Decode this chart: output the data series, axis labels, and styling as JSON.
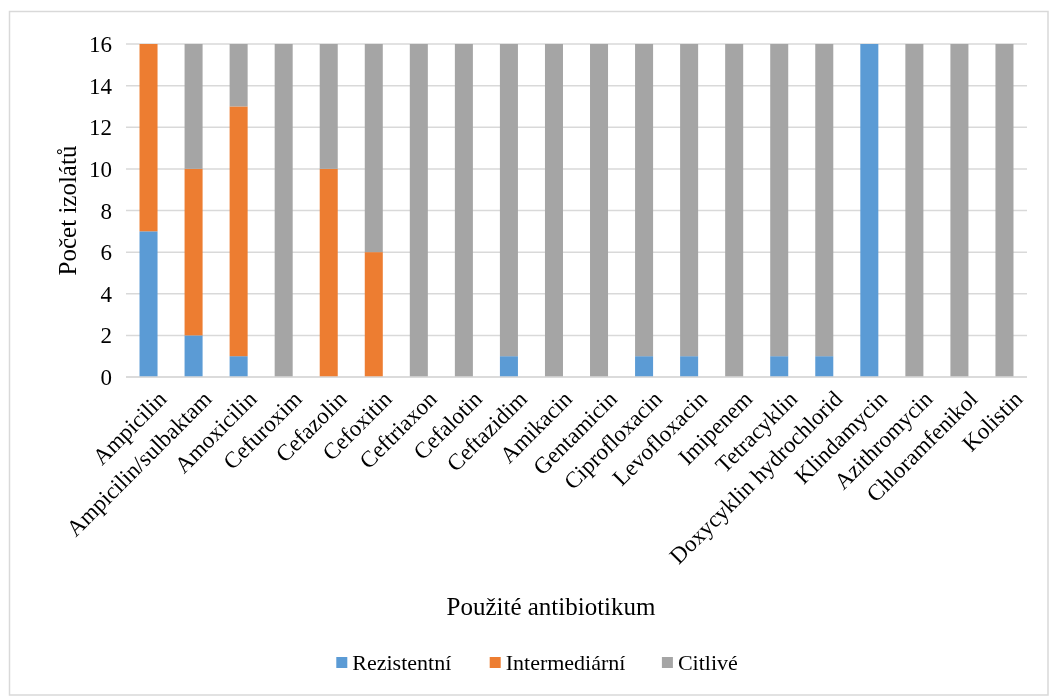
{
  "chart_data": {
    "type": "bar",
    "stacked": true,
    "xlabel": "Použité antibiotikum",
    "ylabel": "Počet izolátů",
    "categories": [
      "Ampicilin",
      "Ampicilin/sulbaktam",
      "Amoxicilin",
      "Cefuroxim",
      "Cefazolin",
      "Cefoxitin",
      "Ceftriaxon",
      "Cefalotin",
      "Ceftazidim",
      "Amikacin",
      "Gentamicin",
      "Ciprofloxacin",
      "Levofloxacin",
      "Imipenem",
      "Tetracyklin",
      "Doxycyklin hydrochlorid",
      "Klindamycin",
      "Azithromycin",
      "Chloramfenikol",
      "Kolistin"
    ],
    "series": [
      {
        "name": "Rezistentní",
        "color": "#5b9bd5",
        "values": [
          7,
          2,
          1,
          0,
          0,
          0,
          0,
          0,
          1,
          0,
          0,
          1,
          1,
          0,
          1,
          1,
          16,
          0,
          0,
          0
        ]
      },
      {
        "name": "Intermediární",
        "color": "#ed7d31",
        "values": [
          9,
          8,
          12,
          0,
          10,
          6,
          0,
          0,
          0,
          0,
          0,
          0,
          0,
          0,
          0,
          0,
          0,
          0,
          0,
          0
        ]
      },
      {
        "name": "Citlivé",
        "color": "#a5a5a5",
        "values": [
          0,
          6,
          3,
          16,
          6,
          10,
          16,
          16,
          15,
          16,
          16,
          15,
          15,
          16,
          15,
          15,
          0,
          16,
          16,
          16
        ]
      }
    ],
    "ylim": [
      0,
      16
    ],
    "yticks": [
      0,
      2,
      4,
      6,
      8,
      10,
      12,
      14,
      16
    ],
    "grid": "y",
    "legend": "bottom"
  }
}
